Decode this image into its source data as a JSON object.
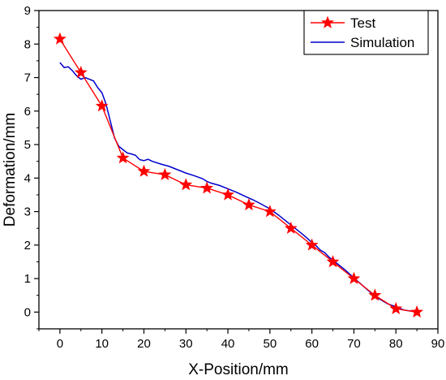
{
  "chart_data": {
    "type": "line",
    "title": "",
    "xlabel": "X-Position/mm",
    "ylabel": "Deformation/mm",
    "xlim": [
      -5,
      90
    ],
    "ylim": [
      -0.5,
      9
    ],
    "xticks": [
      0,
      10,
      20,
      30,
      40,
      50,
      60,
      70,
      80,
      90
    ],
    "yticks": [
      0,
      1,
      2,
      3,
      4,
      5,
      6,
      7,
      8,
      9
    ],
    "grid": false,
    "legend_position": "top-right",
    "series": [
      {
        "name": "Test",
        "color": "#ff0000",
        "marker": "star",
        "x": [
          0,
          5,
          10,
          15,
          20,
          25,
          30,
          35,
          40,
          45,
          50,
          55,
          60,
          65,
          70,
          75,
          80,
          85
        ],
        "y": [
          8.15,
          7.15,
          6.15,
          4.6,
          4.2,
          4.1,
          3.8,
          3.7,
          3.5,
          3.2,
          3.0,
          2.5,
          2.0,
          1.5,
          1.0,
          0.5,
          0.1,
          0.0
        ]
      },
      {
        "name": "Simulation",
        "color": "#0000cc",
        "marker": "none",
        "x": [
          0,
          1,
          2,
          3,
          4,
          5,
          6,
          7,
          8,
          9,
          10,
          11,
          12,
          13,
          14,
          15,
          16,
          17,
          18,
          19,
          20,
          21,
          22,
          24,
          26,
          28,
          30,
          32,
          34,
          35,
          36,
          38,
          40,
          42,
          44,
          46,
          48,
          50,
          52,
          54,
          56,
          58,
          60,
          61,
          62,
          63,
          64,
          65,
          66,
          68,
          70,
          72,
          74,
          76,
          78,
          80,
          82,
          84,
          85
        ],
        "y": [
          7.45,
          7.3,
          7.32,
          7.2,
          7.05,
          6.95,
          7.0,
          6.95,
          6.9,
          6.7,
          6.55,
          6.2,
          5.7,
          5.2,
          4.95,
          4.85,
          4.75,
          4.72,
          4.68,
          4.55,
          4.52,
          4.56,
          4.5,
          4.42,
          4.35,
          4.25,
          4.15,
          4.07,
          3.98,
          3.9,
          3.85,
          3.78,
          3.68,
          3.58,
          3.46,
          3.35,
          3.22,
          3.08,
          2.9,
          2.7,
          2.5,
          2.3,
          2.08,
          1.98,
          1.85,
          1.78,
          1.65,
          1.55,
          1.45,
          1.25,
          1.02,
          0.8,
          0.58,
          0.4,
          0.25,
          0.16,
          0.06,
          0.02,
          0.0
        ]
      }
    ]
  }
}
